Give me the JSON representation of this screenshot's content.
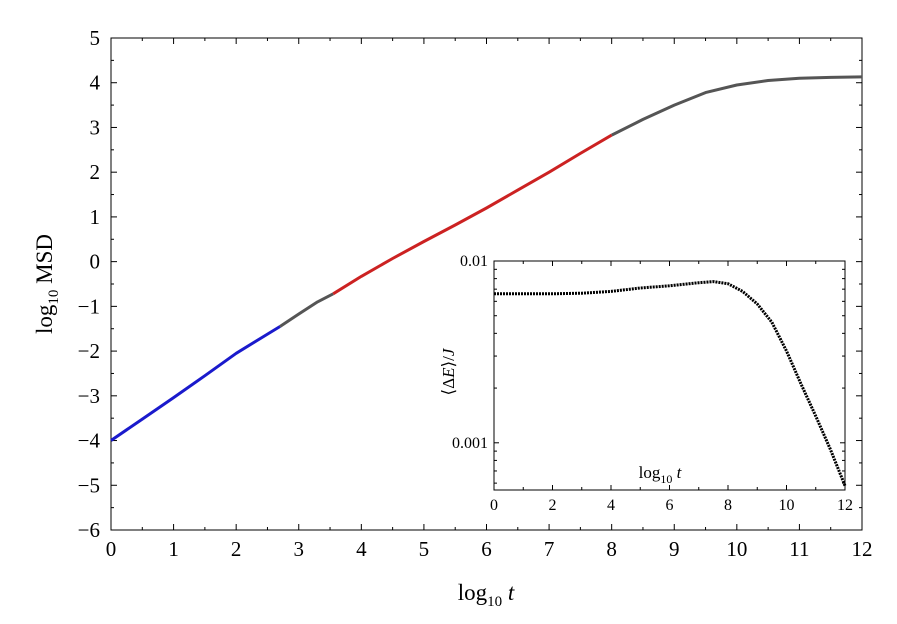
{
  "chart_data": [
    {
      "type": "line",
      "xlabel": "log10 t",
      "ylabel": "log10 MSD",
      "xlim": [
        0,
        12
      ],
      "ylim": [
        -6,
        5
      ],
      "grid": false,
      "xticks": [
        0,
        1,
        2,
        3,
        4,
        5,
        6,
        7,
        8,
        9,
        10,
        11,
        12
      ],
      "yticks": [
        -6,
        -5,
        -4,
        -3,
        -2,
        -1,
        0,
        1,
        2,
        3,
        4,
        5
      ],
      "colors": {
        "early": "#1a1acc",
        "mid": "#555555",
        "fit": "#cc2222"
      },
      "series": [
        {
          "segment": "early",
          "color": "#1a1acc",
          "x": [
            0,
            0.5,
            1,
            1.5,
            2,
            2.5,
            2.7
          ],
          "y": [
            -4.0,
            -3.52,
            -3.04,
            -2.55,
            -2.05,
            -1.62,
            -1.45
          ]
        },
        {
          "segment": "mid",
          "color": "#555555",
          "x": [
            2.7,
            3.0,
            3.3,
            3.55
          ],
          "y": [
            -1.45,
            -1.17,
            -0.9,
            -0.72
          ]
        },
        {
          "segment": "fit",
          "color": "#cc2222",
          "x": [
            3.55,
            4,
            4.5,
            5,
            5.5,
            6,
            6.5,
            7,
            7.5,
            8
          ],
          "y": [
            -0.72,
            -0.33,
            0.07,
            0.45,
            0.82,
            1.2,
            1.6,
            2.0,
            2.42,
            2.83
          ]
        },
        {
          "segment": "mid",
          "color": "#555555",
          "x": [
            8,
            8.5,
            9,
            9.5,
            10,
            10.5,
            11,
            11.5,
            12
          ],
          "y": [
            2.83,
            3.18,
            3.5,
            3.78,
            3.95,
            4.05,
            4.1,
            4.12,
            4.13
          ]
        }
      ]
    },
    {
      "type": "line",
      "xlabel": "log10 t",
      "ylabel": "⟨ΔE⟩/J",
      "xlim": [
        0,
        12
      ],
      "ylim": [
        0.00055,
        0.01
      ],
      "yscale": "log",
      "grid": false,
      "xticks": [
        0,
        2,
        4,
        6,
        8,
        10,
        12
      ],
      "yticks": [
        0.001,
        0.01
      ],
      "ytick_labels": [
        "0.001",
        "0.01"
      ],
      "series": [
        {
          "color": "#000000",
          "x": [
            0,
            0.5,
            1,
            2,
            3,
            4,
            5,
            6,
            7,
            7.5,
            8,
            8.5,
            9,
            9.5,
            10,
            10.5,
            11,
            11.5,
            12
          ],
          "y": [
            0.0066,
            0.0066,
            0.0066,
            0.0066,
            0.00665,
            0.0068,
            0.0071,
            0.0073,
            0.0076,
            0.0077,
            0.0075,
            0.0068,
            0.0058,
            0.0046,
            0.0032,
            0.0021,
            0.0014,
            0.00092,
            0.00058
          ]
        }
      ]
    }
  ]
}
